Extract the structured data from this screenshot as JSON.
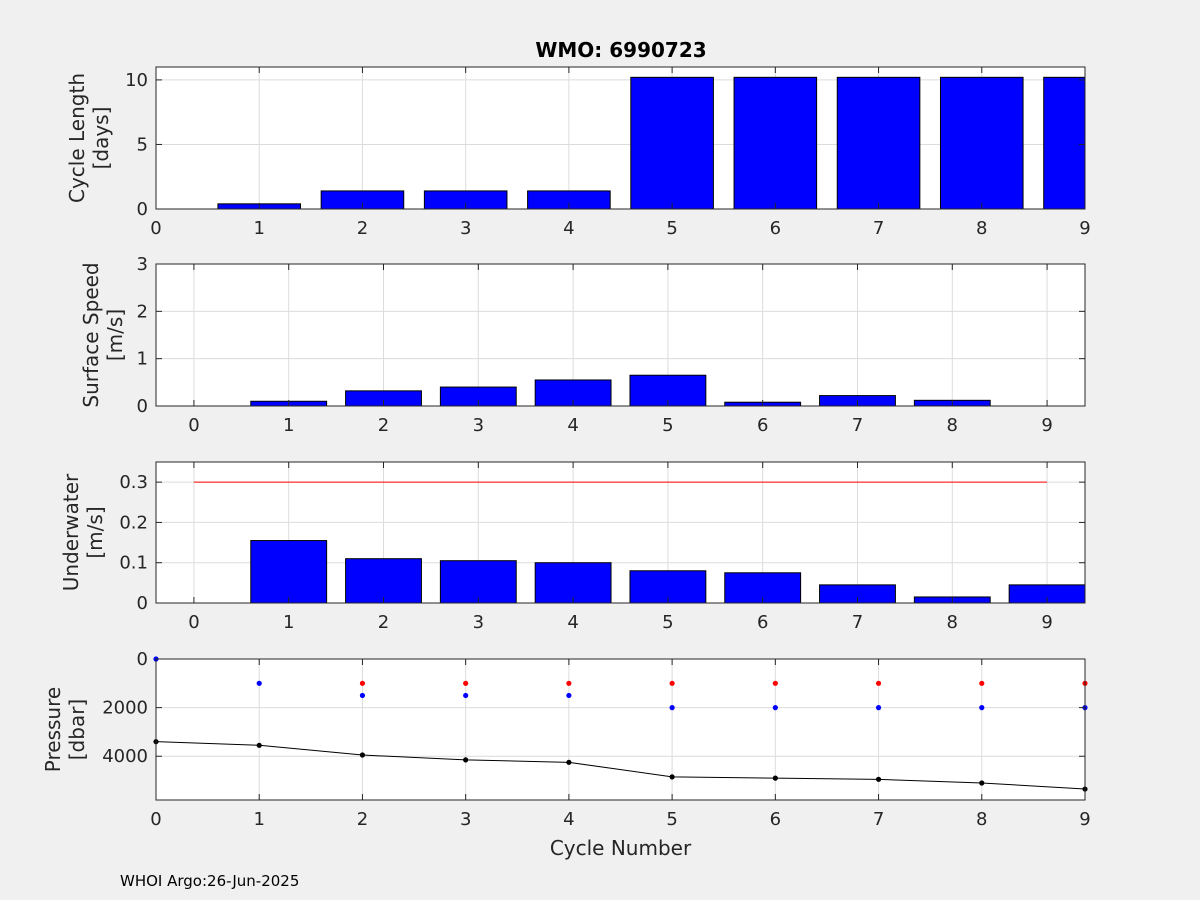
{
  "title": "WMO: 6990723",
  "footer": "WHOI Argo:26-Jun-2025",
  "colors": {
    "bar": "#0000ff",
    "threshold": "#ff0000",
    "park": "#0000ff",
    "max": "#ff0000",
    "profile": "#000000",
    "grid": "#dcdcdc",
    "background": "#f0f0f0"
  },
  "chart_data": [
    {
      "type": "bar",
      "ylabel": [
        "Cycle Length",
        "[days]"
      ],
      "xlabel": "",
      "xlim": [
        0,
        9
      ],
      "ylim": [
        0,
        11
      ],
      "yticks": [
        0,
        5,
        10
      ],
      "xticks": [
        0,
        1,
        2,
        3,
        4,
        5,
        6,
        7,
        8,
        9
      ],
      "categories": [
        1,
        2,
        3,
        4,
        5,
        6,
        7,
        8,
        9
      ],
      "values": [
        0.4,
        1.4,
        1.4,
        1.4,
        10.2,
        10.2,
        10.2,
        10.2,
        10.2
      ],
      "grid": true
    },
    {
      "type": "bar",
      "ylabel": [
        "Surface Speed",
        "[m/s]"
      ],
      "xlabel": "",
      "xlim": [
        -0.4,
        9.4
      ],
      "ylim": [
        0,
        3
      ],
      "yticks": [
        0,
        1,
        2,
        3
      ],
      "xticks": [
        0,
        1,
        2,
        3,
        4,
        5,
        6,
        7,
        8,
        9
      ],
      "categories": [
        1,
        2,
        3,
        4,
        5,
        6,
        7,
        8
      ],
      "values": [
        0.1,
        0.32,
        0.4,
        0.55,
        0.65,
        0.08,
        0.22,
        0.12
      ],
      "grid": true
    },
    {
      "type": "bar",
      "ylabel": [
        "Underwater",
        "[m/s]"
      ],
      "xlabel": "",
      "xlim": [
        -0.4,
        9.4
      ],
      "ylim": [
        0,
        0.35
      ],
      "yticks": [
        0,
        0.1,
        0.2,
        0.3
      ],
      "xticks": [
        0,
        1,
        2,
        3,
        4,
        5,
        6,
        7,
        8,
        9
      ],
      "categories": [
        1,
        2,
        3,
        4,
        5,
        6,
        7,
        8,
        9
      ],
      "values": [
        0.155,
        0.11,
        0.105,
        0.1,
        0.08,
        0.075,
        0.045,
        0.015,
        0.045
      ],
      "threshold": {
        "value": 0.3,
        "from": 0,
        "to": 9
      },
      "grid": true
    },
    {
      "type": "line",
      "ylabel": [
        "Pressure",
        "[dbar]"
      ],
      "xlabel": "Cycle Number",
      "xlim": [
        0,
        9
      ],
      "ylim": [
        5800,
        0
      ],
      "yticks": [
        0,
        2000,
        4000
      ],
      "xticks": [
        0,
        1,
        2,
        3,
        4,
        5,
        6,
        7,
        8,
        9
      ],
      "series": [
        {
          "x": [
            0,
            1,
            2,
            3,
            4,
            5,
            6,
            7,
            8,
            9
          ],
          "values": [
            3400,
            3550,
            3950,
            4150,
            4250,
            4850,
            4900,
            4950,
            5100,
            5350
          ]
        },
        {
          "x": [
            0,
            1,
            2,
            3,
            4,
            5,
            6,
            7,
            8,
            9
          ],
          "values": [
            0,
            1000,
            1500,
            1500,
            1500,
            2000,
            2000,
            2000,
            2000,
            2000
          ]
        },
        {
          "x": [
            2,
            3,
            4,
            5,
            6,
            7,
            8,
            9
          ],
          "values": [
            1000,
            1000,
            1000,
            1000,
            1000,
            1000,
            1000,
            1000
          ]
        }
      ],
      "grid": true
    }
  ]
}
